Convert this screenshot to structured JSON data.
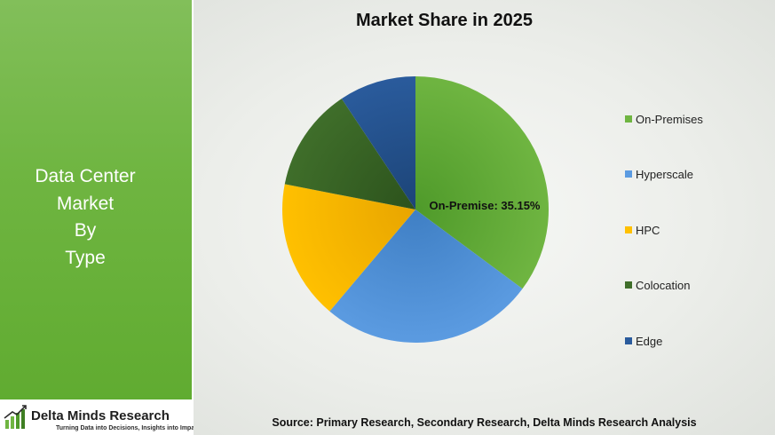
{
  "side_panel": {
    "title_lines": [
      "Data Center",
      "Market",
      "By",
      "Type"
    ]
  },
  "logo": {
    "name": "Delta Minds Research",
    "tagline": "Turning Data into Decisions, Insights into Impact",
    "icon": "bar-chart-arrow-icon"
  },
  "source_note": "Source: Primary Research, Secondary Research, Delta Minds Research Analysis",
  "colors": {
    "side_panel": "#6fb541",
    "on_premises": "#6fb541",
    "hyperscale": "#5b9be1",
    "hpc": "#ffc000",
    "colocation": "#3f6e2a",
    "edge": "#2a5b9c"
  },
  "chart_data": {
    "type": "pie",
    "title": "Market Share in 2025",
    "slices": [
      {
        "label": "On-Premises",
        "value": 35.15,
        "color": "#6fb541",
        "color_dark": "#4f9a2a"
      },
      {
        "label": "Hyperscale",
        "value": 26.0,
        "color": "#5b9be1",
        "color_dark": "#3f7fc4"
      },
      {
        "label": "HPC",
        "value": 16.9,
        "color": "#ffc000",
        "color_dark": "#e8a500"
      },
      {
        "label": "Colocation",
        "value": 12.6,
        "color": "#3f6e2a",
        "color_dark": "#2c521c"
      },
      {
        "label": "Edge",
        "value": 9.35,
        "color": "#2a5b9c",
        "color_dark": "#1c4477"
      }
    ],
    "data_label": "On-Premise: 35.15%",
    "legend_position": "right"
  }
}
